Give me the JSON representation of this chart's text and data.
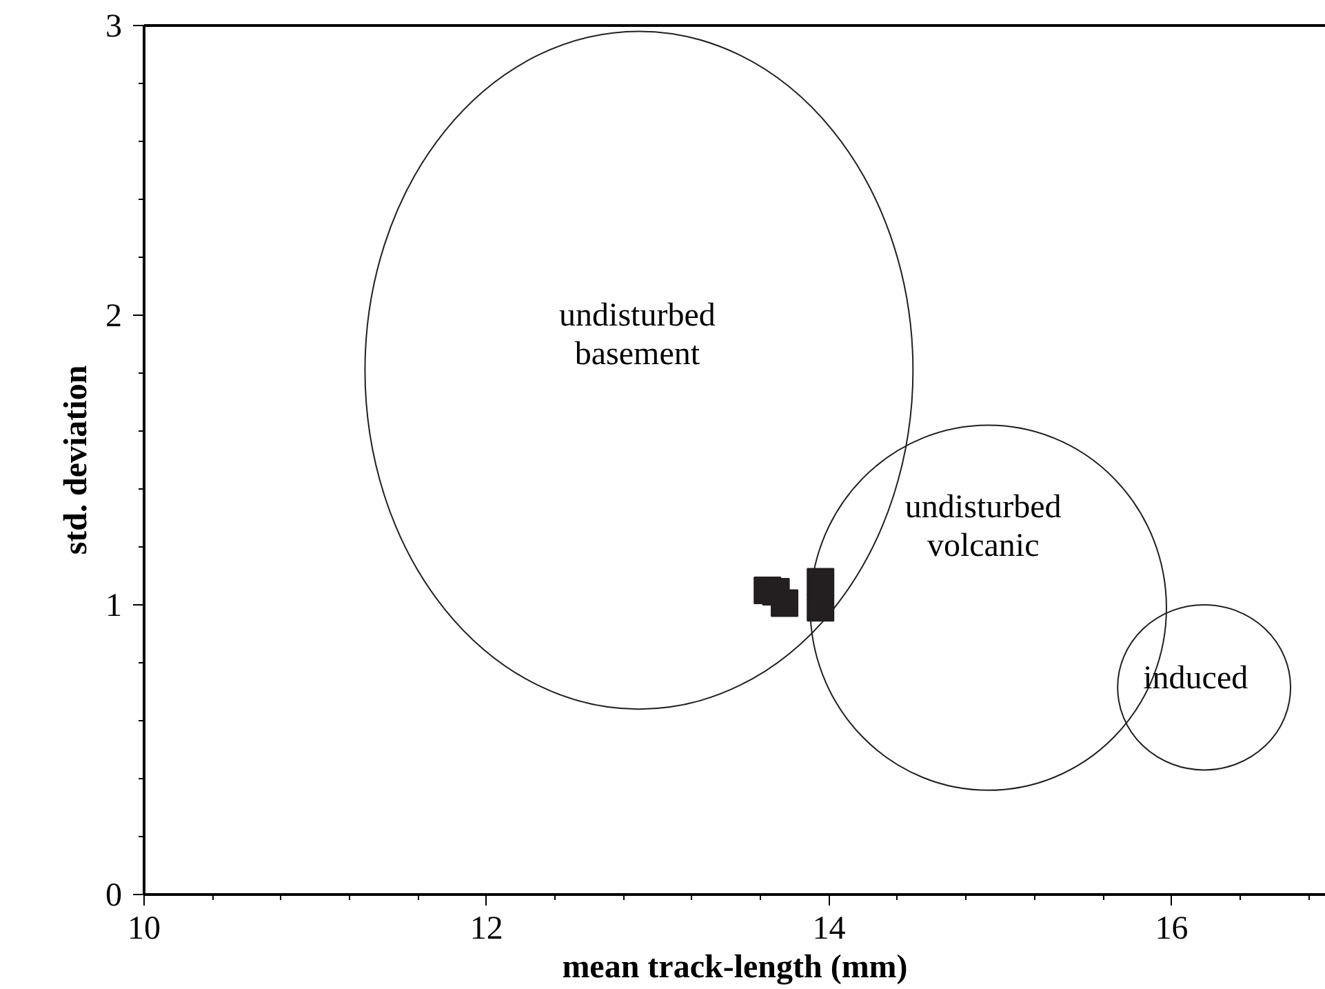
{
  "chart_data": {
    "type": "scatter",
    "xlabel": "mean track-length (mm)",
    "ylabel": "std. deviation",
    "xlim": [
      10,
      16.9
    ],
    "ylim": [
      0,
      3
    ],
    "xticks": [
      10,
      12,
      14,
      16
    ],
    "yticks": [
      0,
      1,
      2,
      3
    ],
    "grid": false,
    "marker": "square",
    "series": [
      {
        "color": "#231f20",
        "x": [
          13.64,
          13.69,
          13.74,
          13.95,
          13.95
        ],
        "values": [
          1.05,
          1.045,
          1.006,
          1.08,
          0.99
        ]
      }
    ],
    "annotations": [
      "undisturbed\nbasement",
      "undisturbed\nvolcanic",
      "induced"
    ]
  }
}
